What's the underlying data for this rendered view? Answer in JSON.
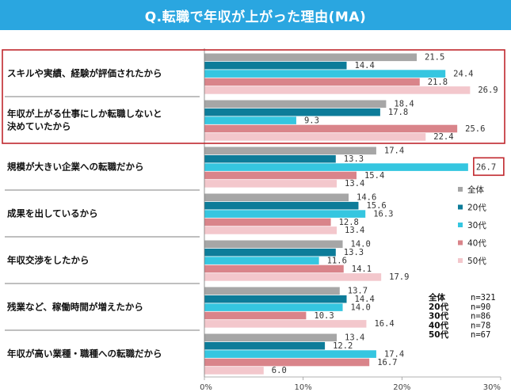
{
  "header": {
    "title": "Q.転職で年収が上がった理由(MA)"
  },
  "chart_data": {
    "type": "bar",
    "orientation": "horizontal",
    "title": "Q.転職で年収が上がった理由(MA)",
    "categories": [
      "スキルや実績、経験が評価されたから",
      "年収が上がる仕事にしか転職しないと決めていたから",
      "規模が大きい企業への転職だから",
      "成果を出しているから",
      "年収交渉をしたから",
      "残業など、稼働時間が増えたから",
      "年収が高い業種・職種への転職だから"
    ],
    "series": [
      {
        "name": "全体",
        "values": [
          21.5,
          18.4,
          17.4,
          14.6,
          14.0,
          13.7,
          13.4
        ],
        "color": "#a6a6a6",
        "label_text": [
          "21.5",
          "18.4",
          "17.4",
          "14.6",
          "14.0",
          "13.7",
          "13.4"
        ]
      },
      {
        "name": "20代",
        "values": [
          14.4,
          17.8,
          13.3,
          15.6,
          13.3,
          14.4,
          12.2
        ],
        "color": "#0d7c99",
        "label_text": [
          "14.4",
          "17.8",
          "13.3",
          "15.6",
          "13.3",
          "14.4",
          "12.2"
        ]
      },
      {
        "name": "30代",
        "values": [
          24.4,
          9.3,
          26.7,
          16.3,
          11.6,
          14.0,
          17.4
        ],
        "color": "#35c6e0",
        "label_text": [
          "24.4",
          "9.3",
          "26.7",
          "16.3",
          "11.6",
          "14.0",
          "17.4"
        ]
      },
      {
        "name": "40代",
        "values": [
          21.8,
          25.6,
          15.4,
          12.8,
          14.1,
          10.3,
          16.7
        ],
        "color": "#d9848a",
        "label_text": [
          "21.8",
          "25.6",
          "15.4",
          "12.8",
          "14.1",
          "10.3",
          "16.7"
        ]
      },
      {
        "name": "50代",
        "values": [
          26.9,
          22.4,
          13.4,
          13.4,
          17.9,
          16.4,
          6.0
        ],
        "color": "#f3c7cc",
        "label_text": [
          "26.9",
          "22.4",
          "13.4",
          "13.4",
          "17.9",
          "16.4",
          "6.0"
        ]
      }
    ],
    "xlim": [
      0,
      30
    ],
    "xticks": [
      "0%",
      "10%",
      "20%",
      "30%"
    ],
    "legend_placement": "right",
    "sample_sizes": [
      {
        "name": "全体",
        "n": "n=321"
      },
      {
        "name": "20代",
        "n": "n=90"
      },
      {
        "name": "30代",
        "n": "n=86"
      },
      {
        "name": "40代",
        "n": "n=78"
      },
      {
        "name": "50代",
        "n": "n=67"
      }
    ],
    "highlight_boxes": [
      {
        "type": "categories",
        "indices": [
          0,
          1
        ],
        "color": "#c0272d"
      },
      {
        "type": "value",
        "category": 2,
        "series": 2,
        "color": "#c0272d"
      }
    ],
    "grid": false
  }
}
